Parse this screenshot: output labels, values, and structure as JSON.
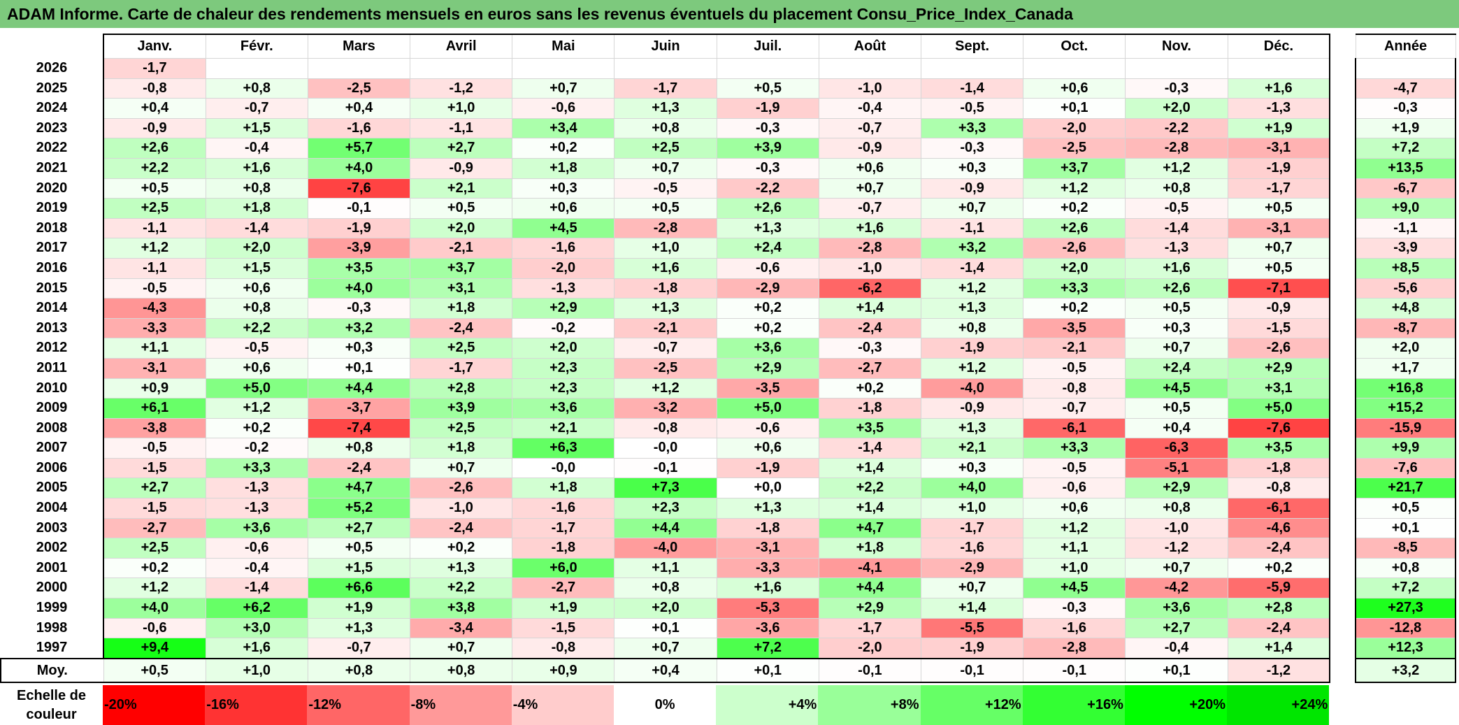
{
  "title": "ADAM Informe. Carte de chaleur des rendements mensuels en euros sans les revenus éventuels du placement Consu_Price_Index_Canada",
  "chart_data": {
    "type": "heatmap",
    "title": "ADAM Informe. Carte de chaleur des rendements mensuels en euros sans les revenus éventuels du placement Consu_Price_Index_Canada",
    "columns": [
      "Janv.",
      "Févr.",
      "Mars",
      "Avril",
      "Mai",
      "Juin",
      "Juil.",
      "Août",
      "Sept.",
      "Oct.",
      "Nov.",
      "Déc."
    ],
    "year_column_label": "Année",
    "avg_row_label": "Moy.",
    "rows": [
      {
        "year": "2026",
        "months": [
          "-1,7",
          "",
          "",
          "",
          "",
          "",
          "",
          "",
          "",
          "",
          "",
          ""
        ],
        "annual": ""
      },
      {
        "year": "2025",
        "months": [
          "-0,8",
          "+0,8",
          "-2,5",
          "-1,2",
          "+0,7",
          "-1,7",
          "+0,5",
          "-1,0",
          "-1,4",
          "+0,6",
          "-0,3",
          "+1,6"
        ],
        "annual": "-4,7"
      },
      {
        "year": "2024",
        "months": [
          "+0,4",
          "-0,7",
          "+0,4",
          "+1,0",
          "-0,6",
          "+1,3",
          "-1,9",
          "-0,4",
          "-0,5",
          "+0,1",
          "+2,0",
          "-1,3"
        ],
        "annual": "-0,3"
      },
      {
        "year": "2023",
        "months": [
          "-0,9",
          "+1,5",
          "-1,6",
          "-1,1",
          "+3,4",
          "+0,8",
          "-0,3",
          "-0,7",
          "+3,3",
          "-2,0",
          "-2,2",
          "+1,9"
        ],
        "annual": "+1,9"
      },
      {
        "year": "2022",
        "months": [
          "+2,6",
          "-0,4",
          "+5,7",
          "+2,7",
          "+0,2",
          "+2,5",
          "+3,9",
          "-0,9",
          "-0,3",
          "-2,5",
          "-2,8",
          "-3,1"
        ],
        "annual": "+7,2"
      },
      {
        "year": "2021",
        "months": [
          "+2,2",
          "+1,6",
          "+4,0",
          "-0,9",
          "+1,8",
          "+0,7",
          "-0,3",
          "+0,6",
          "+0,3",
          "+3,7",
          "+1,2",
          "-1,9"
        ],
        "annual": "+13,5"
      },
      {
        "year": "2020",
        "months": [
          "+0,5",
          "+0,8",
          "-7,6",
          "+2,1",
          "+0,3",
          "-0,5",
          "-2,2",
          "+0,7",
          "-0,9",
          "+1,2",
          "+0,8",
          "-1,7"
        ],
        "annual": "-6,7"
      },
      {
        "year": "2019",
        "months": [
          "+2,5",
          "+1,8",
          "-0,1",
          "+0,5",
          "+0,6",
          "+0,5",
          "+2,6",
          "-0,7",
          "+0,7",
          "+0,2",
          "-0,5",
          "+0,5"
        ],
        "annual": "+9,0"
      },
      {
        "year": "2018",
        "months": [
          "-1,1",
          "-1,4",
          "-1,9",
          "+2,0",
          "+4,5",
          "-2,8",
          "+1,3",
          "+1,6",
          "-1,1",
          "+2,6",
          "-1,4",
          "-3,1"
        ],
        "annual": "-1,1"
      },
      {
        "year": "2017",
        "months": [
          "+1,2",
          "+2,0",
          "-3,9",
          "-2,1",
          "-1,6",
          "+1,0",
          "+2,4",
          "-2,8",
          "+3,2",
          "-2,6",
          "-1,3",
          "+0,7"
        ],
        "annual": "-3,9"
      },
      {
        "year": "2016",
        "months": [
          "-1,1",
          "+1,5",
          "+3,5",
          "+3,7",
          "-2,0",
          "+1,6",
          "-0,6",
          "-1,0",
          "-1,4",
          "+2,0",
          "+1,6",
          "+0,5"
        ],
        "annual": "+8,5"
      },
      {
        "year": "2015",
        "months": [
          "-0,5",
          "+0,6",
          "+4,0",
          "+3,1",
          "-1,3",
          "-1,8",
          "-2,9",
          "-6,2",
          "+1,2",
          "+3,3",
          "+2,6",
          "-7,1"
        ],
        "annual": "-5,6"
      },
      {
        "year": "2014",
        "months": [
          "-4,3",
          "+0,8",
          "-0,3",
          "+1,8",
          "+2,9",
          "+1,3",
          "+0,2",
          "+1,4",
          "+1,3",
          "+0,2",
          "+0,5",
          "-0,9"
        ],
        "annual": "+4,8"
      },
      {
        "year": "2013",
        "months": [
          "-3,3",
          "+2,2",
          "+3,2",
          "-2,4",
          "-0,2",
          "-2,1",
          "+0,2",
          "-2,4",
          "+0,8",
          "-3,5",
          "+0,3",
          "-1,5"
        ],
        "annual": "-8,7"
      },
      {
        "year": "2012",
        "months": [
          "+1,1",
          "-0,5",
          "+0,3",
          "+2,5",
          "+2,0",
          "-0,7",
          "+3,6",
          "-0,3",
          "-1,9",
          "-2,1",
          "+0,7",
          "-2,6"
        ],
        "annual": "+2,0"
      },
      {
        "year": "2011",
        "months": [
          "-3,1",
          "+0,6",
          "+0,1",
          "-1,7",
          "+2,3",
          "-2,5",
          "+2,9",
          "-2,7",
          "+1,2",
          "-0,5",
          "+2,4",
          "+2,9"
        ],
        "annual": "+1,7"
      },
      {
        "year": "2010",
        "months": [
          "+0,9",
          "+5,0",
          "+4,4",
          "+2,8",
          "+2,3",
          "+1,2",
          "-3,5",
          "+0,2",
          "-4,0",
          "-0,8",
          "+4,5",
          "+3,1"
        ],
        "annual": "+16,8"
      },
      {
        "year": "2009",
        "months": [
          "+6,1",
          "+1,2",
          "-3,7",
          "+3,9",
          "+3,6",
          "-3,2",
          "+5,0",
          "-1,8",
          "-0,9",
          "-0,7",
          "+0,5",
          "+5,0"
        ],
        "annual": "+15,2"
      },
      {
        "year": "2008",
        "months": [
          "-3,8",
          "+0,2",
          "-7,4",
          "+2,5",
          "+2,1",
          "-0,8",
          "-0,6",
          "+3,5",
          "+1,3",
          "-6,1",
          "+0,4",
          "-7,6"
        ],
        "annual": "-15,9"
      },
      {
        "year": "2007",
        "months": [
          "-0,5",
          "-0,2",
          "+0,8",
          "+1,8",
          "+6,3",
          "-0,0",
          "+0,6",
          "-1,4",
          "+2,1",
          "+3,3",
          "-6,3",
          "+3,5"
        ],
        "annual": "+9,9"
      },
      {
        "year": "2006",
        "months": [
          "-1,5",
          "+3,3",
          "-2,4",
          "+0,7",
          "-0,0",
          "-0,1",
          "-1,9",
          "+1,4",
          "+0,3",
          "-0,5",
          "-5,1",
          "-1,8"
        ],
        "annual": "-7,6"
      },
      {
        "year": "2005",
        "months": [
          "+2,7",
          "-1,3",
          "+4,7",
          "-2,6",
          "+1,8",
          "+7,3",
          "+0,0",
          "+2,2",
          "+4,0",
          "-0,6",
          "+2,9",
          "-0,8"
        ],
        "annual": "+21,7"
      },
      {
        "year": "2004",
        "months": [
          "-1,5",
          "-1,3",
          "+5,2",
          "-1,0",
          "-1,6",
          "+2,3",
          "+1,3",
          "+1,4",
          "+1,0",
          "+0,6",
          "+0,8",
          "-6,1"
        ],
        "annual": "+0,5"
      },
      {
        "year": "2003",
        "months": [
          "-2,7",
          "+3,6",
          "+2,7",
          "-2,4",
          "-1,7",
          "+4,4",
          "-1,8",
          "+4,7",
          "-1,7",
          "+1,2",
          "-1,0",
          "-4,6"
        ],
        "annual": "+0,1"
      },
      {
        "year": "2002",
        "months": [
          "+2,5",
          "-0,6",
          "+0,5",
          "+0,2",
          "-1,8",
          "-4,0",
          "-3,1",
          "+1,8",
          "-1,6",
          "+1,1",
          "-1,2",
          "-2,4"
        ],
        "annual": "-8,5"
      },
      {
        "year": "2001",
        "months": [
          "+0,2",
          "-0,4",
          "+1,5",
          "+1,3",
          "+6,0",
          "+1,1",
          "-3,3",
          "-4,1",
          "-2,9",
          "+1,0",
          "+0,7",
          "+0,2"
        ],
        "annual": "+0,8"
      },
      {
        "year": "2000",
        "months": [
          "+1,2",
          "-1,4",
          "+6,6",
          "+2,2",
          "-2,7",
          "+0,8",
          "+1,6",
          "+4,4",
          "+0,7",
          "+4,5",
          "-4,2",
          "-5,9"
        ],
        "annual": "+7,2"
      },
      {
        "year": "1999",
        "months": [
          "+4,0",
          "+6,2",
          "+1,9",
          "+3,8",
          "+1,9",
          "+2,0",
          "-5,3",
          "+2,9",
          "+1,4",
          "-0,3",
          "+3,6",
          "+2,8"
        ],
        "annual": "+27,3"
      },
      {
        "year": "1998",
        "months": [
          "-0,6",
          "+3,0",
          "+1,3",
          "-3,4",
          "-1,5",
          "+0,1",
          "-3,6",
          "-1,7",
          "-5,5",
          "-1,6",
          "+2,7",
          "-2,4"
        ],
        "annual": "-12,8"
      },
      {
        "year": "1997",
        "months": [
          "+9,4",
          "+1,6",
          "-0,7",
          "+0,7",
          "-0,8",
          "+0,7",
          "+7,2",
          "-2,0",
          "-1,9",
          "-2,8",
          "-0,4",
          "+1,4"
        ],
        "annual": "+12,3"
      }
    ],
    "averages": {
      "months": [
        "+0,5",
        "+1,0",
        "+0,8",
        "+0,8",
        "+0,9",
        "+0,4",
        "+0,1",
        "-0,1",
        "-0,1",
        "-0,1",
        "+0,1",
        "-1,2"
      ],
      "annual": "+3,2"
    },
    "color_scale": {
      "label_line1": "Echelle de",
      "label_line2": "couleur",
      "stops": [
        {
          "label": "-20%",
          "color": "#ff0000",
          "align": "left"
        },
        {
          "label": "-16%",
          "color": "#ff3333",
          "align": "left"
        },
        {
          "label": "-12%",
          "color": "#ff6666",
          "align": "left"
        },
        {
          "label": "-8%",
          "color": "#ff9999",
          "align": "left"
        },
        {
          "label": "-4%",
          "color": "#ffcccc",
          "align": "left"
        },
        {
          "label": "0%",
          "color": "#ffffff",
          "align": "center"
        },
        {
          "label": "+4%",
          "color": "#ccffcc",
          "align": "right"
        },
        {
          "label": "+8%",
          "color": "#99ff99",
          "align": "right"
        },
        {
          "label": "+12%",
          "color": "#66ff66",
          "align": "right"
        },
        {
          "label": "+16%",
          "color": "#33ff33",
          "align": "right"
        },
        {
          "label": "+20%",
          "color": "#00ff00",
          "align": "right"
        },
        {
          "label": "+24%",
          "color": "#00e600",
          "align": "right"
        }
      ],
      "range": [
        -20,
        24
      ],
      "monthly_full_scale": 10,
      "annual_full_scale": 30
    },
    "colors": {
      "title_bar": "#7dc97d",
      "negative": "#ff0000",
      "positive": "#00ff00"
    }
  }
}
